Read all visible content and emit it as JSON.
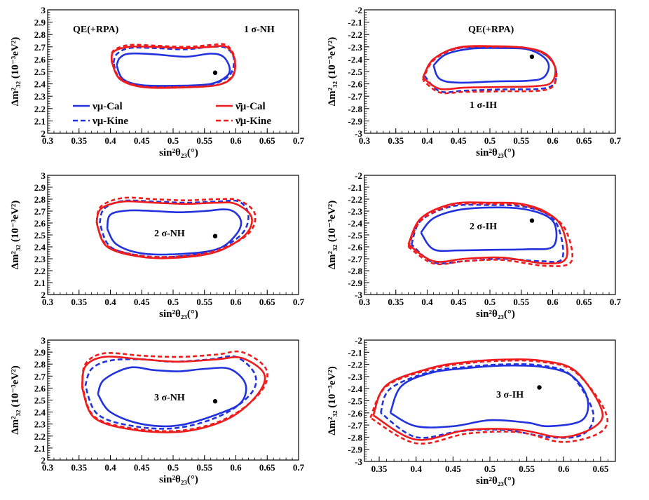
{
  "figure": {
    "xlabel": "sin²θ₂₃(°)",
    "ylabel": "Δm²₃₂ (10⁻³eV²)"
  },
  "legend": [
    {
      "label": "νμ-Cal",
      "color": "#2233dd",
      "dash": "solid"
    },
    {
      "label": "νμ-Kine",
      "color": "#2233dd",
      "dash": "dashed"
    },
    {
      "label": "ν̄μ-Cal",
      "color": "#ee1c1c",
      "dash": "solid"
    },
    {
      "label": "ν̄μ-Kine",
      "color": "#ee1c1c",
      "dash": "dashed"
    }
  ],
  "colors": {
    "nu": "#2233dd",
    "antinu": "#ee1c1c"
  },
  "chart_data": [
    {
      "type": "line",
      "title": "1 σ-NH",
      "extra_label": "QE(+RPA)",
      "xlabel": "sin²θ₂₃(°)",
      "ylabel": "Δm²₃₂ (10⁻³eV²)",
      "xlim": [
        0.3,
        0.7
      ],
      "ylim": [
        2.0,
        3.0
      ],
      "xticks": [
        "0.3",
        "0.35",
        "0.4",
        "0.45",
        "0.5",
        "0.55",
        "0.6",
        "0.65",
        "0.7"
      ],
      "yticks": [
        "2",
        "2.1",
        "2.2",
        "2.3",
        "2.4",
        "2.5",
        "2.6",
        "2.7",
        "2.8",
        "2.9",
        "3"
      ],
      "best_fit": {
        "x": 0.567,
        "y": 2.49
      },
      "series": [
        {
          "name": "νμ-Cal",
          "x": [
            0.41,
            0.415,
            0.43,
            0.47,
            0.52,
            0.56,
            0.58,
            0.59,
            0.585,
            0.56,
            0.51,
            0.45,
            0.42,
            0.41
          ],
          "y": [
            2.55,
            2.61,
            2.645,
            2.64,
            2.62,
            2.645,
            2.62,
            2.53,
            2.46,
            2.4,
            2.385,
            2.39,
            2.44,
            2.55
          ]
        },
        {
          "name": "νμ-Kine",
          "x": [
            0.405,
            0.41,
            0.43,
            0.47,
            0.52,
            0.56,
            0.585,
            0.597,
            0.59,
            0.56,
            0.51,
            0.45,
            0.415,
            0.405
          ],
          "y": [
            2.57,
            2.64,
            2.69,
            2.69,
            2.68,
            2.7,
            2.69,
            2.6,
            2.47,
            2.395,
            2.375,
            2.38,
            2.44,
            2.57
          ]
        },
        {
          "name": "ν̄μ-Cal",
          "x": [
            0.402,
            0.405,
            0.43,
            0.47,
            0.52,
            0.56,
            0.585,
            0.598,
            0.595,
            0.57,
            0.51,
            0.45,
            0.415,
            0.402
          ],
          "y": [
            2.58,
            2.66,
            2.7,
            2.7,
            2.69,
            2.7,
            2.7,
            2.6,
            2.46,
            2.39,
            2.37,
            2.375,
            2.44,
            2.58
          ]
        },
        {
          "name": "ν̄μ-Kine",
          "x": [
            0.402,
            0.405,
            0.43,
            0.47,
            0.52,
            0.56,
            0.585,
            0.598,
            0.595,
            0.57,
            0.51,
            0.45,
            0.415,
            0.402
          ],
          "y": [
            2.59,
            2.67,
            2.715,
            2.71,
            2.7,
            2.715,
            2.715,
            2.61,
            2.47,
            2.39,
            2.375,
            2.38,
            2.45,
            2.59
          ]
        }
      ]
    },
    {
      "type": "line",
      "title": "1 σ-IH",
      "extra_label": "QE(+RPA)",
      "xlabel": "sin²θ₂₃(°)",
      "ylabel": "Δm²₃₂ (10⁻³eV²)",
      "xlim": [
        0.3,
        0.7
      ],
      "ylim": [
        -3.0,
        -2.0
      ],
      "xticks": [
        "0.3",
        "0.35",
        "0.4",
        "0.45",
        "0.5",
        "0.55",
        "0.6",
        "0.65",
        "0.7"
      ],
      "yticks": [
        "-3",
        "-2.9",
        "-2.8",
        "-2.7",
        "-2.6",
        "-2.5",
        "-2.4",
        "-2.3",
        "-2.2",
        "-2.1",
        "-2"
      ],
      "best_fit": {
        "x": 0.567,
        "y": -2.38
      },
      "series": [
        {
          "name": "νμ-Cal",
          "x": [
            0.41,
            0.43,
            0.47,
            0.52,
            0.56,
            0.585,
            0.594,
            0.585,
            0.56,
            0.51,
            0.45,
            0.42,
            0.41
          ],
          "y": [
            -2.45,
            -2.36,
            -2.315,
            -2.31,
            -2.32,
            -2.38,
            -2.46,
            -2.55,
            -2.575,
            -2.58,
            -2.59,
            -2.56,
            -2.45
          ]
        },
        {
          "name": "νμ-Kine",
          "x": [
            0.395,
            0.41,
            0.45,
            0.51,
            0.56,
            0.59,
            0.605,
            0.602,
            0.58,
            0.52,
            0.46,
            0.42,
            0.395
          ],
          "y": [
            -2.53,
            -2.4,
            -2.31,
            -2.3,
            -2.31,
            -2.37,
            -2.48,
            -2.6,
            -2.64,
            -2.645,
            -2.655,
            -2.66,
            -2.53
          ]
        },
        {
          "name": "ν̄μ-Cal",
          "x": [
            0.393,
            0.41,
            0.45,
            0.51,
            0.56,
            0.59,
            0.604,
            0.598,
            0.57,
            0.52,
            0.46,
            0.42,
            0.393
          ],
          "y": [
            -2.55,
            -2.4,
            -2.305,
            -2.295,
            -2.31,
            -2.36,
            -2.47,
            -2.59,
            -2.62,
            -2.625,
            -2.63,
            -2.64,
            -2.55
          ]
        },
        {
          "name": "ν̄μ-Kine",
          "x": [
            0.393,
            0.41,
            0.45,
            0.51,
            0.56,
            0.59,
            0.605,
            0.602,
            0.58,
            0.52,
            0.46,
            0.42,
            0.393
          ],
          "y": [
            -2.57,
            -2.41,
            -2.31,
            -2.3,
            -2.31,
            -2.37,
            -2.48,
            -2.61,
            -2.655,
            -2.66,
            -2.665,
            -2.67,
            -2.57
          ]
        }
      ]
    },
    {
      "type": "line",
      "title": "2 σ-NH",
      "xlabel": "sin²θ₂₃(°)",
      "ylabel": "Δm²₃₂ (10⁻³eV²)",
      "xlim": [
        0.3,
        0.7
      ],
      "ylim": [
        2.0,
        3.0
      ],
      "xticks": [
        "0.3",
        "0.35",
        "0.4",
        "0.45",
        "0.5",
        "0.55",
        "0.6",
        "0.65",
        "0.7"
      ],
      "yticks": [
        "2",
        "2.1",
        "2.2",
        "2.3",
        "2.4",
        "2.5",
        "2.6",
        "2.7",
        "2.8",
        "2.9",
        "3"
      ],
      "best_fit": {
        "x": 0.567,
        "y": 2.49
      },
      "series": [
        {
          "name": "νμ-Cal",
          "x": [
            0.395,
            0.4,
            0.43,
            0.47,
            0.51,
            0.55,
            0.59,
            0.608,
            0.6,
            0.57,
            0.51,
            0.45,
            0.41,
            0.395
          ],
          "y": [
            2.55,
            2.67,
            2.705,
            2.7,
            2.69,
            2.7,
            2.71,
            2.62,
            2.5,
            2.38,
            2.34,
            2.345,
            2.42,
            2.55
          ]
        },
        {
          "name": "νμ-Kine",
          "x": [
            0.383,
            0.39,
            0.42,
            0.47,
            0.52,
            0.57,
            0.605,
            0.62,
            0.61,
            0.57,
            0.51,
            0.45,
            0.4,
            0.383
          ],
          "y": [
            2.6,
            2.72,
            2.785,
            2.78,
            2.77,
            2.78,
            2.78,
            2.67,
            2.51,
            2.38,
            2.32,
            2.325,
            2.4,
            2.6
          ]
        },
        {
          "name": "ν̄μ-Cal",
          "x": [
            0.378,
            0.385,
            0.42,
            0.47,
            0.52,
            0.57,
            0.6,
            0.625,
            0.615,
            0.57,
            0.51,
            0.45,
            0.395,
            0.378
          ],
          "y": [
            2.6,
            2.72,
            2.78,
            2.77,
            2.76,
            2.77,
            2.76,
            2.65,
            2.5,
            2.36,
            2.31,
            2.315,
            2.4,
            2.6
          ]
        },
        {
          "name": "ν̄μ-Kine",
          "x": [
            0.378,
            0.385,
            0.42,
            0.47,
            0.52,
            0.57,
            0.605,
            0.63,
            0.62,
            0.57,
            0.51,
            0.45,
            0.395,
            0.378
          ],
          "y": [
            2.61,
            2.74,
            2.81,
            2.8,
            2.79,
            2.8,
            2.79,
            2.68,
            2.51,
            2.37,
            2.32,
            2.325,
            2.41,
            2.61
          ]
        }
      ]
    },
    {
      "type": "line",
      "title": "2 σ-IH",
      "xlabel": "sin²θ₂₃(°)",
      "ylabel": "Δm²₃₂ (10⁻³eV²)",
      "xlim": [
        0.3,
        0.7
      ],
      "ylim": [
        -3.0,
        -2.0
      ],
      "xticks": [
        "0.3",
        "0.35",
        "0.4",
        "0.45",
        "0.5",
        "0.55",
        "0.6",
        "0.65",
        "0.7"
      ],
      "yticks": [
        "-3",
        "-2.9",
        "-2.8",
        "-2.7",
        "-2.6",
        "-2.5",
        "-2.4",
        "-2.3",
        "-2.2",
        "-2.1",
        "-2"
      ],
      "best_fit": {
        "x": 0.567,
        "y": -2.38
      },
      "series": [
        {
          "name": "νμ-Cal",
          "x": [
            0.39,
            0.41,
            0.45,
            0.5,
            0.55,
            0.59,
            0.605,
            0.6,
            0.56,
            0.5,
            0.45,
            0.41,
            0.39
          ],
          "y": [
            -2.48,
            -2.36,
            -2.29,
            -2.27,
            -2.28,
            -2.34,
            -2.44,
            -2.6,
            -2.62,
            -2.625,
            -2.63,
            -2.62,
            -2.48
          ]
        },
        {
          "name": "νμ-Kine",
          "x": [
            0.375,
            0.39,
            0.44,
            0.5,
            0.55,
            0.59,
            0.61,
            0.615,
            0.58,
            0.52,
            0.46,
            0.41,
            0.375
          ],
          "y": [
            -2.58,
            -2.38,
            -2.26,
            -2.25,
            -2.26,
            -2.32,
            -2.45,
            -2.7,
            -2.72,
            -2.7,
            -2.72,
            -2.73,
            -2.58
          ]
        },
        {
          "name": "ν̄μ-Cal",
          "x": [
            0.37,
            0.39,
            0.44,
            0.5,
            0.55,
            0.59,
            0.615,
            0.622,
            0.59,
            0.52,
            0.46,
            0.41,
            0.37
          ],
          "y": [
            -2.58,
            -2.36,
            -2.24,
            -2.23,
            -2.24,
            -2.31,
            -2.44,
            -2.69,
            -2.74,
            -2.69,
            -2.7,
            -2.72,
            -2.58
          ]
        },
        {
          "name": "ν̄μ-Kine",
          "x": [
            0.37,
            0.39,
            0.44,
            0.5,
            0.55,
            0.59,
            0.62,
            0.63,
            0.59,
            0.52,
            0.46,
            0.41,
            0.37
          ],
          "y": [
            -2.6,
            -2.38,
            -2.25,
            -2.24,
            -2.25,
            -2.32,
            -2.45,
            -2.72,
            -2.76,
            -2.71,
            -2.72,
            -2.74,
            -2.6
          ]
        }
      ]
    },
    {
      "type": "line",
      "title": "3 σ-NH",
      "xlabel": "sin²θ₂₃(°)",
      "ylabel": "Δm²₃₂ (10⁻³eV²)",
      "xlim": [
        0.3,
        0.7
      ],
      "ylim": [
        2.0,
        3.0
      ],
      "xticks": [
        "0.3",
        "0.35",
        "0.4",
        "0.45",
        "0.5",
        "0.55",
        "0.6",
        "0.65",
        "0.7"
      ],
      "yticks": [
        "2",
        "2.1",
        "2.2",
        "2.3",
        "2.4",
        "2.5",
        "2.6",
        "2.7",
        "2.8",
        "2.9",
        "3"
      ],
      "best_fit": {
        "x": 0.567,
        "y": 2.49
      },
      "series": [
        {
          "name": "νμ-Cal",
          "x": [
            0.38,
            0.39,
            0.43,
            0.47,
            0.51,
            0.55,
            0.59,
            0.615,
            0.61,
            0.58,
            0.51,
            0.45,
            0.4,
            0.38
          ],
          "y": [
            2.55,
            2.67,
            2.77,
            2.75,
            2.74,
            2.76,
            2.76,
            2.64,
            2.49,
            2.4,
            2.29,
            2.3,
            2.4,
            2.55
          ]
        },
        {
          "name": "νμ-Kine",
          "x": [
            0.36,
            0.37,
            0.4,
            0.45,
            0.5,
            0.56,
            0.6,
            0.63,
            0.625,
            0.58,
            0.51,
            0.44,
            0.38,
            0.36
          ],
          "y": [
            2.62,
            2.76,
            2.83,
            2.84,
            2.82,
            2.84,
            2.86,
            2.72,
            2.56,
            2.38,
            2.27,
            2.28,
            2.38,
            2.62
          ]
        },
        {
          "name": "ν̄μ-Cal",
          "x": [
            0.355,
            0.36,
            0.39,
            0.45,
            0.51,
            0.57,
            0.61,
            0.645,
            0.635,
            0.59,
            0.52,
            0.44,
            0.375,
            0.355
          ],
          "y": [
            2.6,
            2.78,
            2.86,
            2.84,
            2.82,
            2.84,
            2.85,
            2.72,
            2.55,
            2.35,
            2.24,
            2.25,
            2.35,
            2.6
          ]
        },
        {
          "name": "ν̄μ-Kine",
          "x": [
            0.355,
            0.36,
            0.39,
            0.45,
            0.51,
            0.57,
            0.61,
            0.648,
            0.64,
            0.59,
            0.52,
            0.44,
            0.375,
            0.355
          ],
          "y": [
            2.62,
            2.8,
            2.89,
            2.87,
            2.86,
            2.88,
            2.9,
            2.76,
            2.57,
            2.36,
            2.25,
            2.26,
            2.36,
            2.62
          ]
        }
      ]
    },
    {
      "type": "line",
      "title": "3 σ-IH",
      "xlabel": "sin²θ₂₃(°)",
      "ylabel": "Δm²₃₂ (10⁻³eV²)",
      "xlim": [
        0.33,
        0.67
      ],
      "ylim": [
        -3.0,
        -2.0
      ],
      "xticks": [
        "0.35",
        "0.4",
        "0.45",
        "0.5",
        "0.55",
        "0.6",
        "0.65"
      ],
      "yticks": [
        "-3",
        "-2.9",
        "-2.8",
        "-2.7",
        "-2.6",
        "-2.5",
        "-2.4",
        "-2.3",
        "-2.2",
        "-2.1",
        "-2"
      ],
      "best_fit": {
        "x": 0.567,
        "y": -2.39
      },
      "series": [
        {
          "name": "νμ-Cal",
          "x": [
            0.365,
            0.38,
            0.42,
            0.47,
            0.52,
            0.57,
            0.61,
            0.632,
            0.625,
            0.58,
            0.55,
            0.5,
            0.45,
            0.4,
            0.365
          ],
          "y": [
            -2.6,
            -2.38,
            -2.27,
            -2.23,
            -2.21,
            -2.22,
            -2.29,
            -2.48,
            -2.66,
            -2.71,
            -2.68,
            -2.66,
            -2.71,
            -2.71,
            -2.6
          ]
        },
        {
          "name": "νμ-Kine",
          "x": [
            0.352,
            0.365,
            0.42,
            0.47,
            0.52,
            0.57,
            0.61,
            0.64,
            0.625,
            0.58,
            0.52,
            0.46,
            0.4,
            0.352
          ],
          "y": [
            -2.6,
            -2.4,
            -2.26,
            -2.22,
            -2.2,
            -2.21,
            -2.29,
            -2.6,
            -2.78,
            -2.8,
            -2.74,
            -2.75,
            -2.8,
            -2.6
          ]
        },
        {
          "name": "ν̄μ-Cal",
          "x": [
            0.342,
            0.36,
            0.42,
            0.47,
            0.52,
            0.57,
            0.615,
            0.65,
            0.645,
            0.6,
            0.54,
            0.47,
            0.4,
            0.342
          ],
          "y": [
            -2.62,
            -2.37,
            -2.23,
            -2.18,
            -2.16,
            -2.17,
            -2.25,
            -2.55,
            -2.7,
            -2.8,
            -2.74,
            -2.74,
            -2.82,
            -2.62
          ]
        },
        {
          "name": "ν̄μ-Kine",
          "x": [
            0.338,
            0.36,
            0.42,
            0.47,
            0.52,
            0.57,
            0.615,
            0.655,
            0.652,
            0.6,
            0.54,
            0.47,
            0.4,
            0.338
          ],
          "y": [
            -2.64,
            -2.38,
            -2.24,
            -2.19,
            -2.17,
            -2.18,
            -2.26,
            -2.57,
            -2.75,
            -2.84,
            -2.76,
            -2.77,
            -2.85,
            -2.64
          ]
        }
      ]
    }
  ]
}
